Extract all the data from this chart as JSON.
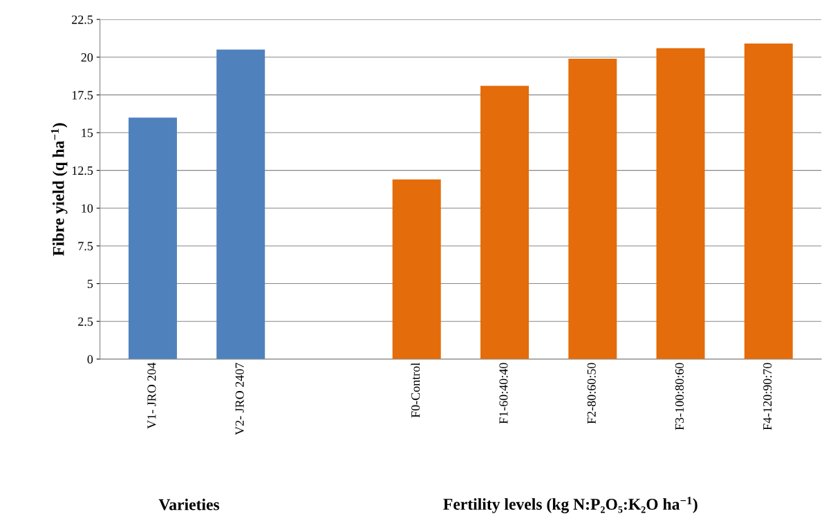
{
  "chart_data": {
    "type": "bar",
    "ylabel": "Fibre yield (q ha$^{−1}$)",
    "categories": [
      "V1- JRO 204",
      "V2- JRO 2407",
      null,
      "F0-Control",
      "F1-60:40:40",
      "F2-80:60:50",
      "F3-100:80:60",
      "F4-120:90:70"
    ],
    "values": [
      16.0,
      20.5,
      null,
      11.9,
      18.1,
      19.9,
      20.6,
      20.9
    ],
    "colors": [
      "#4f81bd",
      "#4f81bd",
      null,
      "#e46c0a",
      "#e46c0a",
      "#e46c0a",
      "#e46c0a",
      "#e46c0a"
    ],
    "ylim": [
      0,
      22.5
    ],
    "yticks": [
      0,
      {
        "value": 2.5,
        "label": "2.5"
      },
      5,
      {
        "value": 7.5,
        "label": "7.5"
      },
      10,
      {
        "value": 12.5,
        "label": "12.5"
      },
      15,
      {
        "value": 17.5,
        "label": "17.5"
      },
      20,
      {
        "value": 22.5,
        "label": "22.5"
      }
    ],
    "grid": "y",
    "annotations": [
      "Varieties",
      "Fertility levels (kg N:P₂O₅:K₂O ha$^{−1}$)"
    ]
  }
}
